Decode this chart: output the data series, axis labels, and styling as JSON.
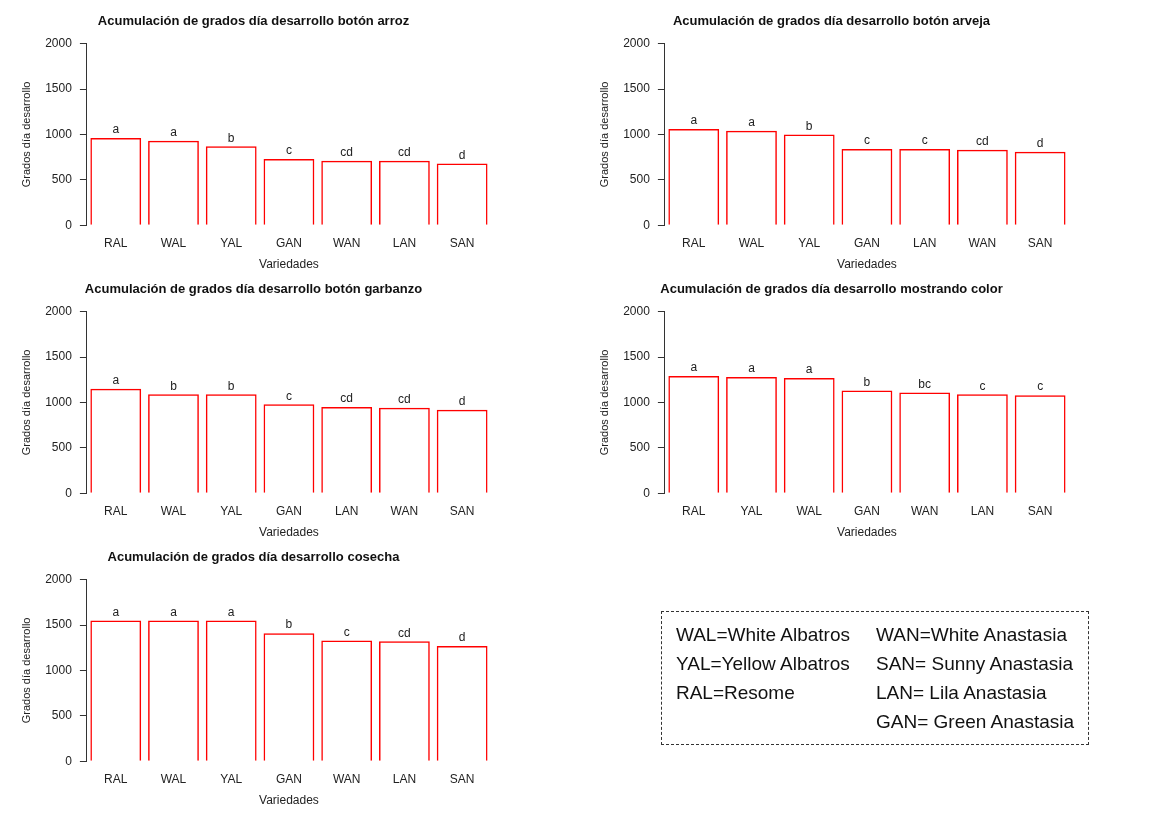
{
  "chart_data": [
    {
      "type": "bar",
      "title": "Acumulación de grados día desarrollo botón arroz",
      "xlabel": "Variedades",
      "ylabel": "Grados día desarrollo",
      "categories": [
        "RAL",
        "WAL",
        "YAL",
        "GAN",
        "WAN",
        "LAN",
        "SAN"
      ],
      "values": [
        960,
        930,
        870,
        730,
        710,
        710,
        680
      ],
      "value_labels": [
        "a",
        "a",
        "b",
        "c",
        "cd",
        "cd",
        "d"
      ],
      "color": "#ff0000",
      "ylim": [
        0,
        2000
      ],
      "yticks": [
        0,
        500,
        1000,
        1500,
        2000
      ]
    },
    {
      "type": "bar",
      "title": "Acumulación de grados día desarrollo botón arveja",
      "xlabel": "Variedades",
      "ylabel": "Grados día desarrollo",
      "categories": [
        "RAL",
        "WAL",
        "YAL",
        "GAN",
        "LAN",
        "WAN",
        "SAN"
      ],
      "values": [
        1060,
        1040,
        1000,
        840,
        840,
        830,
        810
      ],
      "value_labels": [
        "a",
        "a",
        "b",
        "c",
        "c",
        "cd",
        "d"
      ],
      "color": "#ff0000",
      "ylim": [
        0,
        2000
      ],
      "yticks": [
        0,
        500,
        1000,
        1500,
        2000
      ]
    },
    {
      "type": "bar",
      "title": "Acumulación de grados día desarrollo botón garbanzo",
      "xlabel": "Variedades",
      "ylabel": "Grados día desarrollo",
      "categories": [
        "RAL",
        "WAL",
        "YAL",
        "GAN",
        "LAN",
        "WAN",
        "SAN"
      ],
      "values": [
        1150,
        1090,
        1090,
        980,
        950,
        940,
        920
      ],
      "value_labels": [
        "a",
        "b",
        "b",
        "c",
        "cd",
        "cd",
        "d"
      ],
      "color": "#ff0000",
      "ylim": [
        0,
        2000
      ],
      "yticks": [
        0,
        500,
        1000,
        1500,
        2000
      ]
    },
    {
      "type": "bar",
      "title": "Acumulación de grados día desarrollo mostrando color",
      "xlabel": "Variedades",
      "ylabel": "Grados día desarrollo",
      "categories": [
        "RAL",
        "YAL",
        "WAL",
        "GAN",
        "WAN",
        "LAN",
        "SAN"
      ],
      "values": [
        1290,
        1280,
        1270,
        1130,
        1110,
        1090,
        1080
      ],
      "value_labels": [
        "a",
        "a",
        "a",
        "b",
        "bc",
        "c",
        "c"
      ],
      "color": "#ff0000",
      "ylim": [
        0,
        2000
      ],
      "yticks": [
        0,
        500,
        1000,
        1500,
        2000
      ]
    },
    {
      "type": "bar",
      "title": "Acumulación de grados día desarrollo cosecha",
      "xlabel": "Variedades",
      "ylabel": "Grados día desarrollo",
      "categories": [
        "RAL",
        "WAL",
        "YAL",
        "GAN",
        "WAN",
        "LAN",
        "SAN"
      ],
      "values": [
        1550,
        1550,
        1550,
        1410,
        1330,
        1320,
        1270
      ],
      "value_labels": [
        "a",
        "a",
        "a",
        "b",
        "c",
        "cd",
        "d"
      ],
      "color": "#ff0000",
      "ylim": [
        0,
        2000
      ],
      "yticks": [
        0,
        500,
        1000,
        1500,
        2000
      ]
    },
    {
      "type": "other",
      "annotations": [
        "WAL=White Albatros",
        "YAL=Yellow Albatros",
        "RAL=Resome",
        "WAN=White Anastasia",
        "SAN= Sunny Anastasia",
        "LAN= Lila Anastasia",
        "GAN= Green Anastasia"
      ]
    }
  ]
}
